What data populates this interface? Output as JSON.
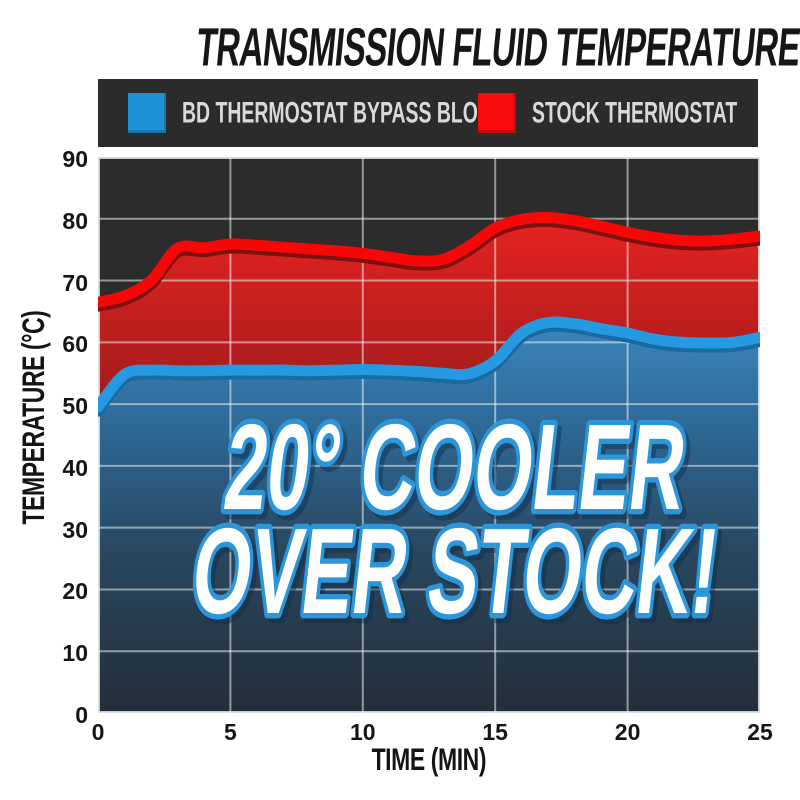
{
  "title": "TRANSMISSION FLUID TEMPERATURE",
  "legend": {
    "background": "#2b2b2b",
    "text_color": "#d9d9d9",
    "items": [
      {
        "label": "BD THERMOSTAT BYPASS BLOCK",
        "color": "#1e90d8"
      },
      {
        "label": "STOCK THERMOSTAT",
        "color": "#fa0a0a"
      }
    ]
  },
  "overlay": {
    "line1": "20° COOLER",
    "line2": "OVER STOCK!",
    "fill": "#ffffff",
    "stroke": "#2d95da"
  },
  "chart_data": {
    "type": "area",
    "title": "TRANSMISSION FLUID TEMPERATURE",
    "xlabel": "TIME (MIN)",
    "ylabel": "TEMPERATURE (°C)",
    "xlim": [
      0,
      25
    ],
    "ylim": [
      0,
      90
    ],
    "x_ticks": [
      0,
      5,
      10,
      15,
      20,
      25
    ],
    "y_ticks": [
      0,
      10,
      20,
      30,
      40,
      50,
      60,
      70,
      80,
      90
    ],
    "grid": true,
    "legend_position": "top",
    "plot_background": "#2c2c2c",
    "gridline_color": "rgba(235,240,243,0.55)",
    "border_color": "rgba(235,240,243,0.8)",
    "annotation": "20° COOLER OVER STOCK!",
    "x": [
      0,
      1,
      2,
      3,
      4,
      5,
      6,
      7,
      8,
      9,
      10,
      11,
      12,
      13,
      14,
      15,
      16,
      17,
      18,
      19,
      20,
      21,
      22,
      23,
      24,
      25
    ],
    "series": [
      {
        "name": "BD THERMOSTAT BYPASS BLOCK",
        "line_color": "#259ae3",
        "shadow_color": "#176b9e",
        "fill_gradient": [
          "#3b89c0",
          "#2d6794",
          "#29475f",
          "#232e39"
        ],
        "values": [
          49.5,
          54.8,
          55.5,
          55.4,
          55.4,
          55.5,
          55.5,
          55.5,
          55.4,
          55.5,
          55.6,
          55.5,
          55.3,
          55.0,
          54.9,
          57.0,
          61.5,
          63.2,
          63.0,
          62.2,
          61.5,
          60.5,
          60.0,
          59.9,
          60.0,
          60.8
        ]
      },
      {
        "name": "STOCK THERMOSTAT",
        "line_color": "#f70808",
        "shadow_color": "#7e1010",
        "fill_gradient": [
          "#ea2222",
          "#b01d1d",
          "#8a1717",
          "#521010"
        ],
        "values": [
          66.5,
          67.5,
          70.0,
          75.2,
          75.3,
          75.9,
          75.7,
          75.4,
          75.1,
          74.8,
          74.4,
          73.8,
          73.2,
          73.4,
          75.5,
          78.5,
          79.9,
          80.2,
          79.7,
          78.8,
          77.8,
          77.0,
          76.5,
          76.4,
          76.7,
          77.2
        ]
      }
    ]
  }
}
